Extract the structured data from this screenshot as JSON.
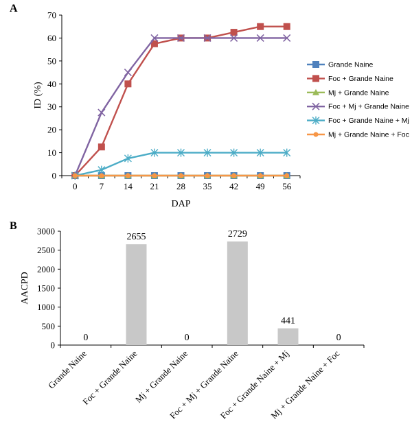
{
  "chart_data": [
    {
      "panel_label": "A",
      "type": "line",
      "xlabel": "DAP",
      "ylabel": "ID (%)",
      "x": [
        0,
        7,
        14,
        21,
        28,
        35,
        42,
        49,
        56
      ],
      "ylim": [
        0,
        70
      ],
      "yticks": [
        0,
        10,
        20,
        30,
        40,
        50,
        60,
        70
      ],
      "grid": false,
      "legend_position": "right",
      "series": [
        {
          "name": "Grande Naine",
          "color": "#4F81BD",
          "marker": "square",
          "values": [
            0,
            0,
            0,
            0,
            0,
            0,
            0,
            0,
            0
          ]
        },
        {
          "name": "Foc + Grande Naine",
          "color": "#C0504D",
          "marker": "square",
          "values": [
            0,
            12.5,
            40,
            57.5,
            60,
            60,
            62.5,
            65,
            65
          ]
        },
        {
          "name": "Mj + Grande Naine",
          "color": "#9BBB59",
          "marker": "triangle",
          "values": [
            0,
            0,
            0,
            0,
            0,
            0,
            0,
            0,
            0
          ]
        },
        {
          "name": "Foc + Mj + Grande Naine",
          "color": "#8064A2",
          "marker": "x",
          "values": [
            0,
            27.5,
            45,
            60,
            60,
            60,
            60,
            60,
            60
          ]
        },
        {
          "name": "Foc + Grande Naine + Mj",
          "color": "#4BACC6",
          "marker": "star",
          "values": [
            0,
            2.5,
            7.5,
            10,
            10,
            10,
            10,
            10,
            10
          ]
        },
        {
          "name": "Mj + Grande Naine + Foc",
          "color": "#F79646",
          "marker": "circle",
          "values": [
            0,
            0,
            0,
            0,
            0,
            0,
            0,
            0,
            0
          ]
        }
      ]
    },
    {
      "panel_label": "B",
      "type": "bar",
      "xlabel": "",
      "ylabel": "AACPD",
      "categories": [
        "Grande Naine",
        "Foc + Grande Naine",
        "Mj + Grande Naine",
        "Foc + Mj + Grande Naine",
        "Foc + Grande Naine + Mj",
        "Mj + Grande Naine + Foc"
      ],
      "values": [
        0,
        2655,
        0,
        2729,
        441,
        0
      ],
      "value_labels": [
        "0",
        "2655",
        "0",
        "2729",
        "441",
        "0"
      ],
      "ylim": [
        0,
        3000
      ],
      "yticks": [
        0,
        500,
        1000,
        1500,
        2000,
        2500,
        3000
      ],
      "grid": false,
      "bar_color": "#C8C8C8"
    }
  ]
}
